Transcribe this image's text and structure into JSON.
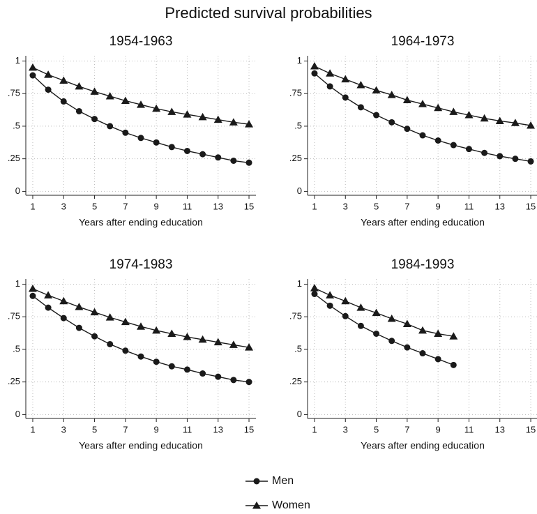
{
  "title": "Predicted survival probabilities",
  "chart_data": [
    {
      "type": "line",
      "title": "1954-1963",
      "xlabel": "Years after ending education",
      "x": [
        1,
        2,
        3,
        4,
        5,
        6,
        7,
        8,
        9,
        10,
        11,
        12,
        13,
        14,
        15
      ],
      "series": [
        {
          "name": "Men",
          "color": "#1a1a1a",
          "marker": "circle",
          "values": [
            0.89,
            0.78,
            0.69,
            0.615,
            0.555,
            0.5,
            0.45,
            0.41,
            0.375,
            0.34,
            0.31,
            0.285,
            0.26,
            0.235,
            0.22
          ]
        },
        {
          "name": "Women",
          "color": "#1a1a1a",
          "marker": "triangle",
          "values": [
            0.95,
            0.895,
            0.85,
            0.805,
            0.765,
            0.73,
            0.695,
            0.665,
            0.635,
            0.61,
            0.59,
            0.57,
            0.55,
            0.53,
            0.515
          ]
        }
      ],
      "xlim": [
        0.55,
        15.45
      ],
      "ylim": [
        -0.03,
        1.04
      ],
      "xticks": [
        1,
        3,
        5,
        7,
        9,
        11,
        13,
        15
      ],
      "yticks": [
        0,
        {
          "value": 0.25,
          "label": ".25"
        },
        {
          "value": 0.5,
          "label": ".5"
        },
        {
          "value": 0.75,
          "label": ".75"
        },
        1
      ],
      "grid": true
    },
    {
      "type": "line",
      "title": "1964-1973",
      "xlabel": "Years after ending education",
      "x": [
        1,
        2,
        3,
        4,
        5,
        6,
        7,
        8,
        9,
        10,
        11,
        12,
        13,
        14,
        15
      ],
      "series": [
        {
          "name": "Men",
          "color": "#1a1a1a",
          "marker": "circle",
          "values": [
            0.905,
            0.805,
            0.72,
            0.645,
            0.585,
            0.53,
            0.48,
            0.43,
            0.39,
            0.355,
            0.325,
            0.295,
            0.27,
            0.25,
            0.23
          ]
        },
        {
          "name": "Women",
          "color": "#1a1a1a",
          "marker": "triangle",
          "values": [
            0.96,
            0.905,
            0.86,
            0.815,
            0.775,
            0.74,
            0.7,
            0.67,
            0.64,
            0.61,
            0.585,
            0.56,
            0.54,
            0.525,
            0.505
          ]
        }
      ],
      "xlim": [
        0.55,
        15.45
      ],
      "ylim": [
        -0.03,
        1.04
      ],
      "xticks": [
        1,
        3,
        5,
        7,
        9,
        11,
        13,
        15
      ],
      "yticks": [
        0,
        {
          "value": 0.25,
          "label": ".25"
        },
        {
          "value": 0.5,
          "label": ".5"
        },
        {
          "value": 0.75,
          "label": ".75"
        },
        1
      ],
      "grid": true
    },
    {
      "type": "line",
      "title": "1974-1983",
      "xlabel": "Years after ending education",
      "x": [
        1,
        2,
        3,
        4,
        5,
        6,
        7,
        8,
        9,
        10,
        11,
        12,
        13,
        14,
        15
      ],
      "series": [
        {
          "name": "Men",
          "color": "#1a1a1a",
          "marker": "circle",
          "values": [
            0.91,
            0.82,
            0.74,
            0.665,
            0.6,
            0.54,
            0.49,
            0.445,
            0.405,
            0.37,
            0.345,
            0.315,
            0.29,
            0.265,
            0.25
          ]
        },
        {
          "name": "Women",
          "color": "#1a1a1a",
          "marker": "triangle",
          "values": [
            0.965,
            0.915,
            0.87,
            0.825,
            0.785,
            0.745,
            0.71,
            0.675,
            0.645,
            0.62,
            0.595,
            0.575,
            0.555,
            0.535,
            0.515
          ]
        }
      ],
      "xlim": [
        0.55,
        15.45
      ],
      "ylim": [
        -0.03,
        1.04
      ],
      "xticks": [
        1,
        3,
        5,
        7,
        9,
        11,
        13,
        15
      ],
      "yticks": [
        0,
        {
          "value": 0.25,
          "label": ".25"
        },
        {
          "value": 0.5,
          "label": ".5"
        },
        {
          "value": 0.75,
          "label": ".75"
        },
        1
      ],
      "grid": true
    },
    {
      "type": "line",
      "title": "1984-1993",
      "xlabel": "Years after ending education",
      "x": [
        1,
        2,
        3,
        4,
        5,
        6,
        7,
        8,
        9,
        10
      ],
      "series": [
        {
          "name": "Men",
          "color": "#1a1a1a",
          "marker": "circle",
          "values": [
            0.925,
            0.835,
            0.755,
            0.68,
            0.62,
            0.565,
            0.515,
            0.47,
            0.425,
            0.38
          ]
        },
        {
          "name": "Women",
          "color": "#1a1a1a",
          "marker": "triangle",
          "values": [
            0.97,
            0.915,
            0.87,
            0.82,
            0.78,
            0.735,
            0.695,
            0.645,
            0.62,
            0.6
          ]
        }
      ],
      "xlim": [
        0.55,
        15.45
      ],
      "ylim": [
        -0.03,
        1.04
      ],
      "xticks": [
        1,
        3,
        5,
        7,
        9,
        11,
        13,
        15
      ],
      "yticks": [
        0,
        {
          "value": 0.25,
          "label": ".25"
        },
        {
          "value": 0.5,
          "label": ".5"
        },
        {
          "value": 0.75,
          "label": ".75"
        },
        1
      ],
      "grid": true
    }
  ]
}
